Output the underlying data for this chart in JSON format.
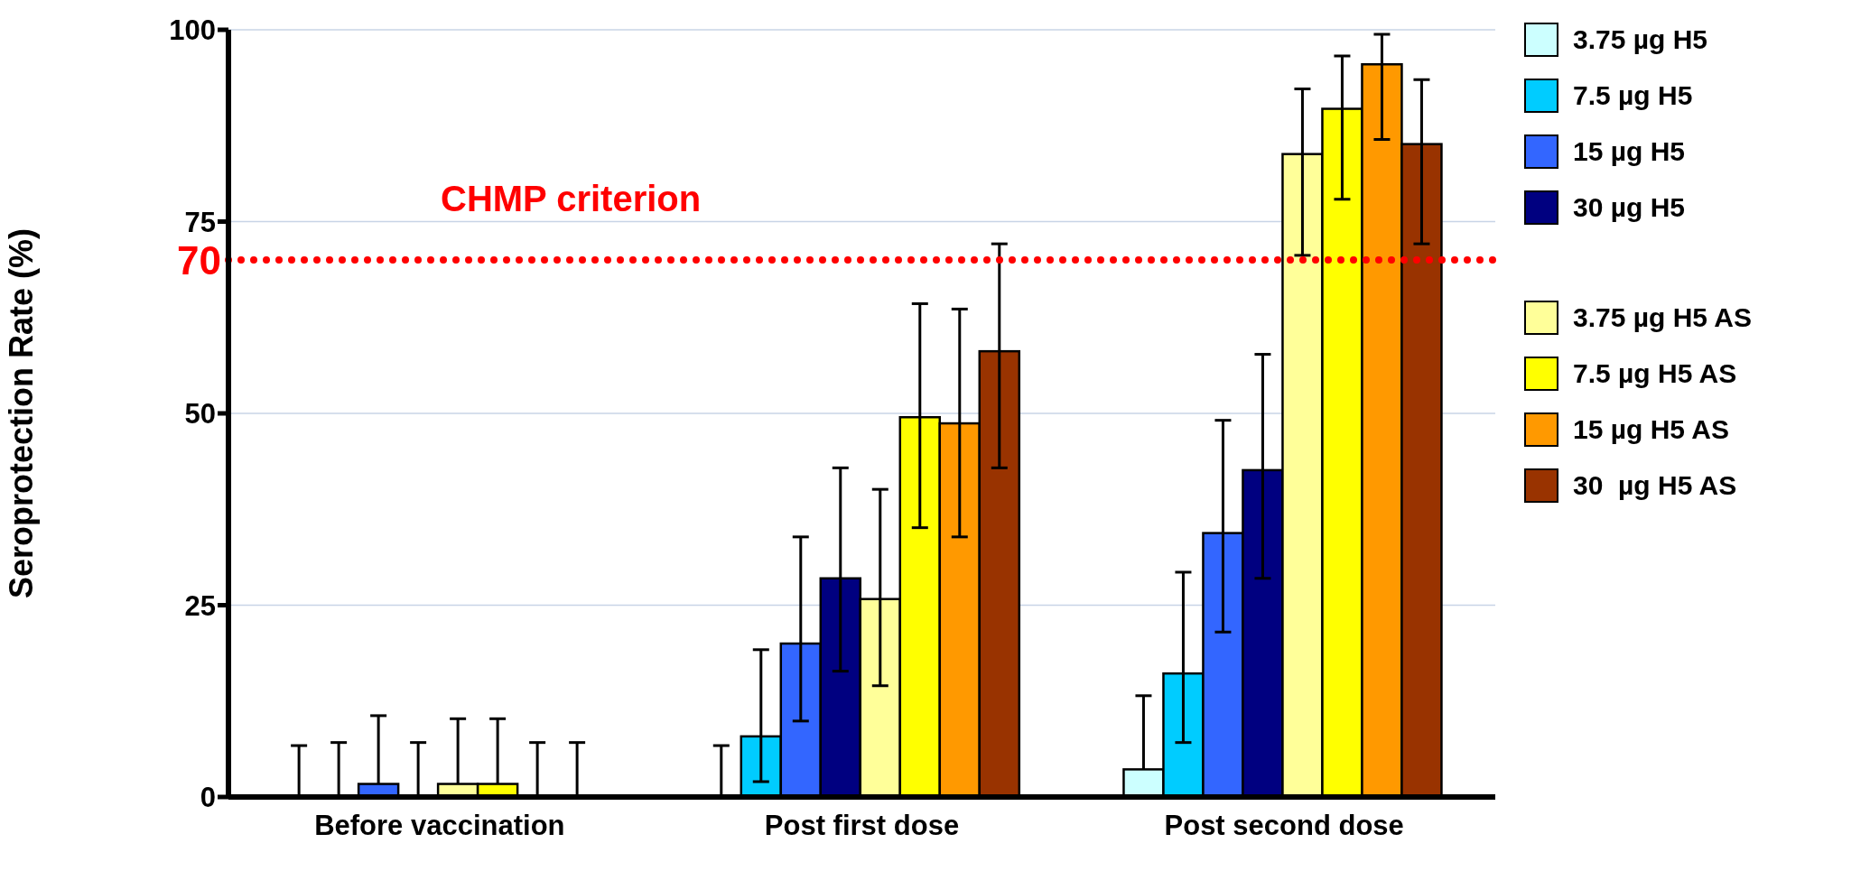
{
  "chart_data": {
    "type": "bar",
    "ylabel": "Seroprotection Rate (%)",
    "categories": [
      "Before vaccination",
      "Post first dose",
      "Post second dose"
    ],
    "series": [
      {
        "name": "3.75 µg H5",
        "color": "#ccffff",
        "values": [
          0,
          0,
          3.6
        ],
        "errors": [
          [
            0,
            6.7
          ],
          [
            0,
            6.7
          ],
          [
            3.6,
            13.2
          ]
        ]
      },
      {
        "name": "7.5 µg H5",
        "color": "#00ccff",
        "values": [
          0,
          7.9,
          16.1
        ],
        "errors": [
          [
            0,
            7.1
          ],
          [
            2.0,
            19.2
          ],
          [
            7.1,
            29.3
          ]
        ]
      },
      {
        "name": "15 µg H5",
        "color": "#3366ff",
        "values": [
          1.7,
          20.0,
          34.4
        ],
        "errors": [
          [
            1.7,
            10.6
          ],
          [
            9.9,
            33.9
          ],
          [
            21.5,
            49.1
          ]
        ]
      },
      {
        "name": "30 µg H5",
        "color": "#000080",
        "values": [
          0,
          28.5,
          42.6
        ],
        "errors": [
          [
            0,
            7.1
          ],
          [
            16.4,
            42.9
          ],
          [
            28.5,
            57.7
          ]
        ]
      },
      {
        "name": "3.75 µg H5 AS",
        "color": "#ffff99",
        "values": [
          1.7,
          25.8,
          83.8
        ],
        "errors": [
          [
            1.7,
            10.2
          ],
          [
            14.5,
            40.1
          ],
          [
            70.6,
            92.3
          ]
        ]
      },
      {
        "name": "7.5 µg H5 AS",
        "color": "#ffff00",
        "values": [
          1.7,
          49.5,
          89.7
        ],
        "errors": [
          [
            1.7,
            10.2
          ],
          [
            35.1,
            64.3
          ],
          [
            77.9,
            96.6
          ]
        ]
      },
      {
        "name": "15 µg H5 AS",
        "color": "#ff9900",
        "values": [
          0,
          48.7,
          95.5
        ],
        "errors": [
          [
            0,
            7.1
          ],
          [
            33.9,
            63.6
          ],
          [
            85.7,
            99.4
          ]
        ]
      },
      {
        "name": "30  µg H5 AS",
        "color": "#993300",
        "values": [
          0,
          58.1,
          85.1
        ],
        "errors": [
          [
            0,
            7.1
          ],
          [
            42.9,
            72.1
          ],
          [
            72.1,
            93.5
          ]
        ]
      }
    ],
    "ylim": [
      0,
      100
    ],
    "yticks": [
      0,
      25,
      50,
      75,
      100
    ],
    "grid": "y",
    "legend": "right",
    "ref_lines": [
      {
        "axis": "y",
        "value": 70,
        "label": "70",
        "color": "#ff0000",
        "line_style": "dotted"
      }
    ],
    "annotations": [
      "CHMP criterion"
    ]
  }
}
